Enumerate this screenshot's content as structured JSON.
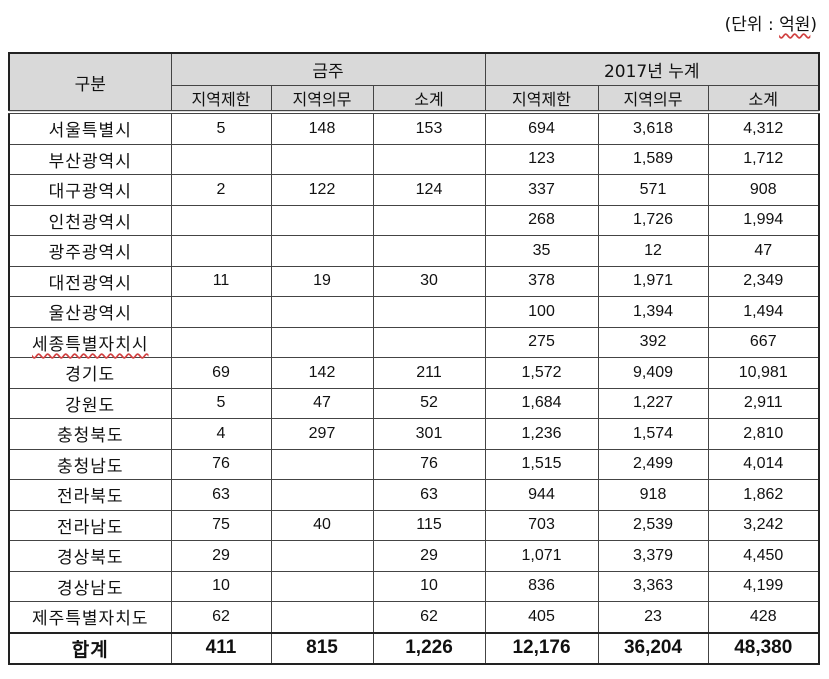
{
  "unit_label_prefix": "(단위 : ",
  "unit_label_unit": "억원",
  "unit_label_suffix": ")",
  "table": {
    "corner_header": "구분",
    "group_headers": [
      "금주",
      "2017년 누계"
    ],
    "sub_headers": [
      "지역제한",
      "지역의무",
      "소계",
      "지역제한",
      "지역의무",
      "소계"
    ],
    "rows": [
      [
        "서울특별시",
        "5",
        "148",
        "153",
        "694",
        "3,618",
        "4,312"
      ],
      [
        "부산광역시",
        "",
        "",
        "",
        "123",
        "1,589",
        "1,712"
      ],
      [
        "대구광역시",
        "2",
        "122",
        "124",
        "337",
        "571",
        "908"
      ],
      [
        "인천광역시",
        "",
        "",
        "",
        "268",
        "1,726",
        "1,994"
      ],
      [
        "광주광역시",
        "",
        "",
        "",
        "35",
        "12",
        "47"
      ],
      [
        "대전광역시",
        "11",
        "19",
        "30",
        "378",
        "1,971",
        "2,349"
      ],
      [
        "울산광역시",
        "",
        "",
        "",
        "100",
        "1,394",
        "1,494"
      ],
      [
        "세종특별자치시",
        "",
        "",
        "",
        "275",
        "392",
        "667"
      ],
      [
        "경기도",
        "69",
        "142",
        "211",
        "1,572",
        "9,409",
        "10,981"
      ],
      [
        "강원도",
        "5",
        "47",
        "52",
        "1,684",
        "1,227",
        "2,911"
      ],
      [
        "충청북도",
        "4",
        "297",
        "301",
        "1,236",
        "1,574",
        "2,810"
      ],
      [
        "충청남도",
        "76",
        "",
        "76",
        "1,515",
        "2,499",
        "4,014"
      ],
      [
        "전라북도",
        "63",
        "",
        "63",
        "944",
        "918",
        "1,862"
      ],
      [
        "전라남도",
        "75",
        "40",
        "115",
        "703",
        "2,539",
        "3,242"
      ],
      [
        "경상북도",
        "29",
        "",
        "29",
        "1,071",
        "3,379",
        "4,450"
      ],
      [
        "경상남도",
        "10",
        "",
        "10",
        "836",
        "3,363",
        "4,199"
      ],
      [
        "제주특별자치도",
        "62",
        "",
        "62",
        "405",
        "23",
        "428"
      ]
    ],
    "total": [
      "합계",
      "411",
      "815",
      "1,226",
      "12,176",
      "36,204",
      "48,380"
    ]
  }
}
